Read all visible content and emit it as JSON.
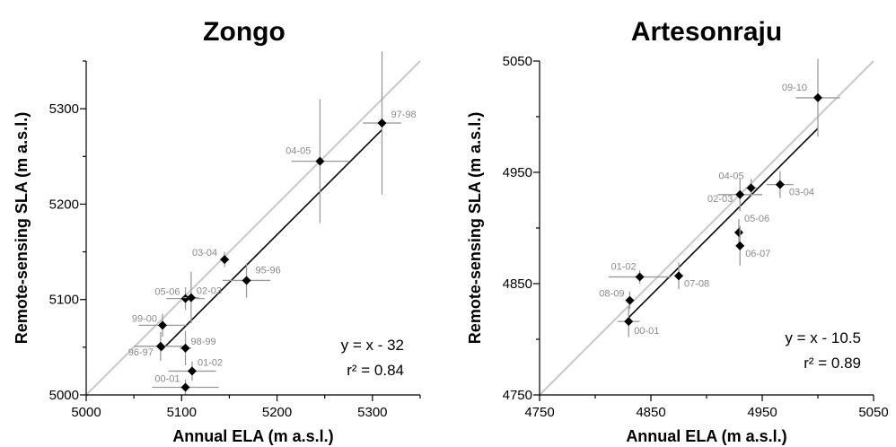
{
  "chart_data": [
    {
      "type": "scatter",
      "title": "Zongo",
      "xlabel": "Annual ELA (m a.s.l.)",
      "ylabel": "Remote-sensing SLA (m a.s.l.)",
      "xlim": [
        5000,
        5350
      ],
      "ylim": [
        5000,
        5350
      ],
      "xticks": [
        5000,
        5100,
        5200,
        5300
      ],
      "yticks": [
        5000,
        5100,
        5200,
        5300
      ],
      "one_to_one_line": true,
      "fit": {
        "equation": "y = x - 32",
        "r2": "r² = 0.84",
        "offset": -32
      },
      "points": [
        {
          "label": "97-98",
          "x": 5310,
          "y": 5285,
          "xerr": 20,
          "yerr": 75
        },
        {
          "label": "04-05",
          "x": 5245,
          "y": 5245,
          "xerr": 30,
          "yerr": 65
        },
        {
          "label": "03-04",
          "x": 5145,
          "y": 5142,
          "xerr": 5,
          "yerr": 8
        },
        {
          "label": "95-96",
          "x": 5168,
          "y": 5120,
          "xerr": 25,
          "yerr": 18
        },
        {
          "label": "05-06",
          "x": 5104,
          "y": 5101,
          "xerr": 20,
          "yerr": 12
        },
        {
          "label": "02-03",
          "x": 5110,
          "y": 5102,
          "xerr": 8,
          "yerr": 27
        },
        {
          "label": "99-00",
          "x": 5080,
          "y": 5073,
          "xerr": 25,
          "yerr": 12
        },
        {
          "label": "96-97",
          "x": 5078,
          "y": 5051,
          "xerr": 28,
          "yerr": 15
        },
        {
          "label": "98-99",
          "x": 5104,
          "y": 5049,
          "xerr": 6,
          "yerr": 18
        },
        {
          "label": "01-02",
          "x": 5111,
          "y": 5025,
          "xerr": 25,
          "yerr": 10
        },
        {
          "label": "00-01",
          "x": 5104,
          "y": 5008,
          "xerr": 35,
          "yerr": 8
        }
      ]
    },
    {
      "type": "scatter",
      "title": "Artesonraju",
      "xlabel": "Annual ELA (m a.s.l.)",
      "ylabel": "Remote-sensing SLA (m a.s.l.)",
      "xlim": [
        4750,
        5050
      ],
      "ylim": [
        4750,
        5050
      ],
      "xticks": [
        4750,
        4850,
        4950,
        5050
      ],
      "yticks": [
        4750,
        4850,
        4950,
        5050
      ],
      "one_to_one_line": true,
      "fit": {
        "equation": "y = x - 10.5",
        "r2": "r² = 0.89",
        "offset": -10.5
      },
      "points": [
        {
          "label": "09-10",
          "x": 5000,
          "y": 5017,
          "xerr": 20,
          "yerr": 35
        },
        {
          "label": "04-05",
          "x": 4940,
          "y": 4936,
          "xerr": 5,
          "yerr": 8
        },
        {
          "label": "03-04",
          "x": 4966,
          "y": 4939,
          "xerr": 12,
          "yerr": 12
        },
        {
          "label": "02-03",
          "x": 4930,
          "y": 4930,
          "xerr": 20,
          "yerr": 15
        },
        {
          "label": "05-06",
          "x": 4929,
          "y": 4896,
          "xerr": 3,
          "yerr": 12
        },
        {
          "label": "06-07",
          "x": 4930,
          "y": 4884,
          "xerr": 3,
          "yerr": 18
        },
        {
          "label": "01-02",
          "x": 4840,
          "y": 4856,
          "xerr": 28,
          "yerr": 6
        },
        {
          "label": "07-08",
          "x": 4875,
          "y": 4857,
          "xerr": 4,
          "yerr": 12
        },
        {
          "label": "08-09",
          "x": 4831,
          "y": 4835,
          "xerr": 4,
          "yerr": 8
        },
        {
          "label": "00-01",
          "x": 4830,
          "y": 4816,
          "xerr": 10,
          "yerr": 14
        }
      ]
    }
  ]
}
